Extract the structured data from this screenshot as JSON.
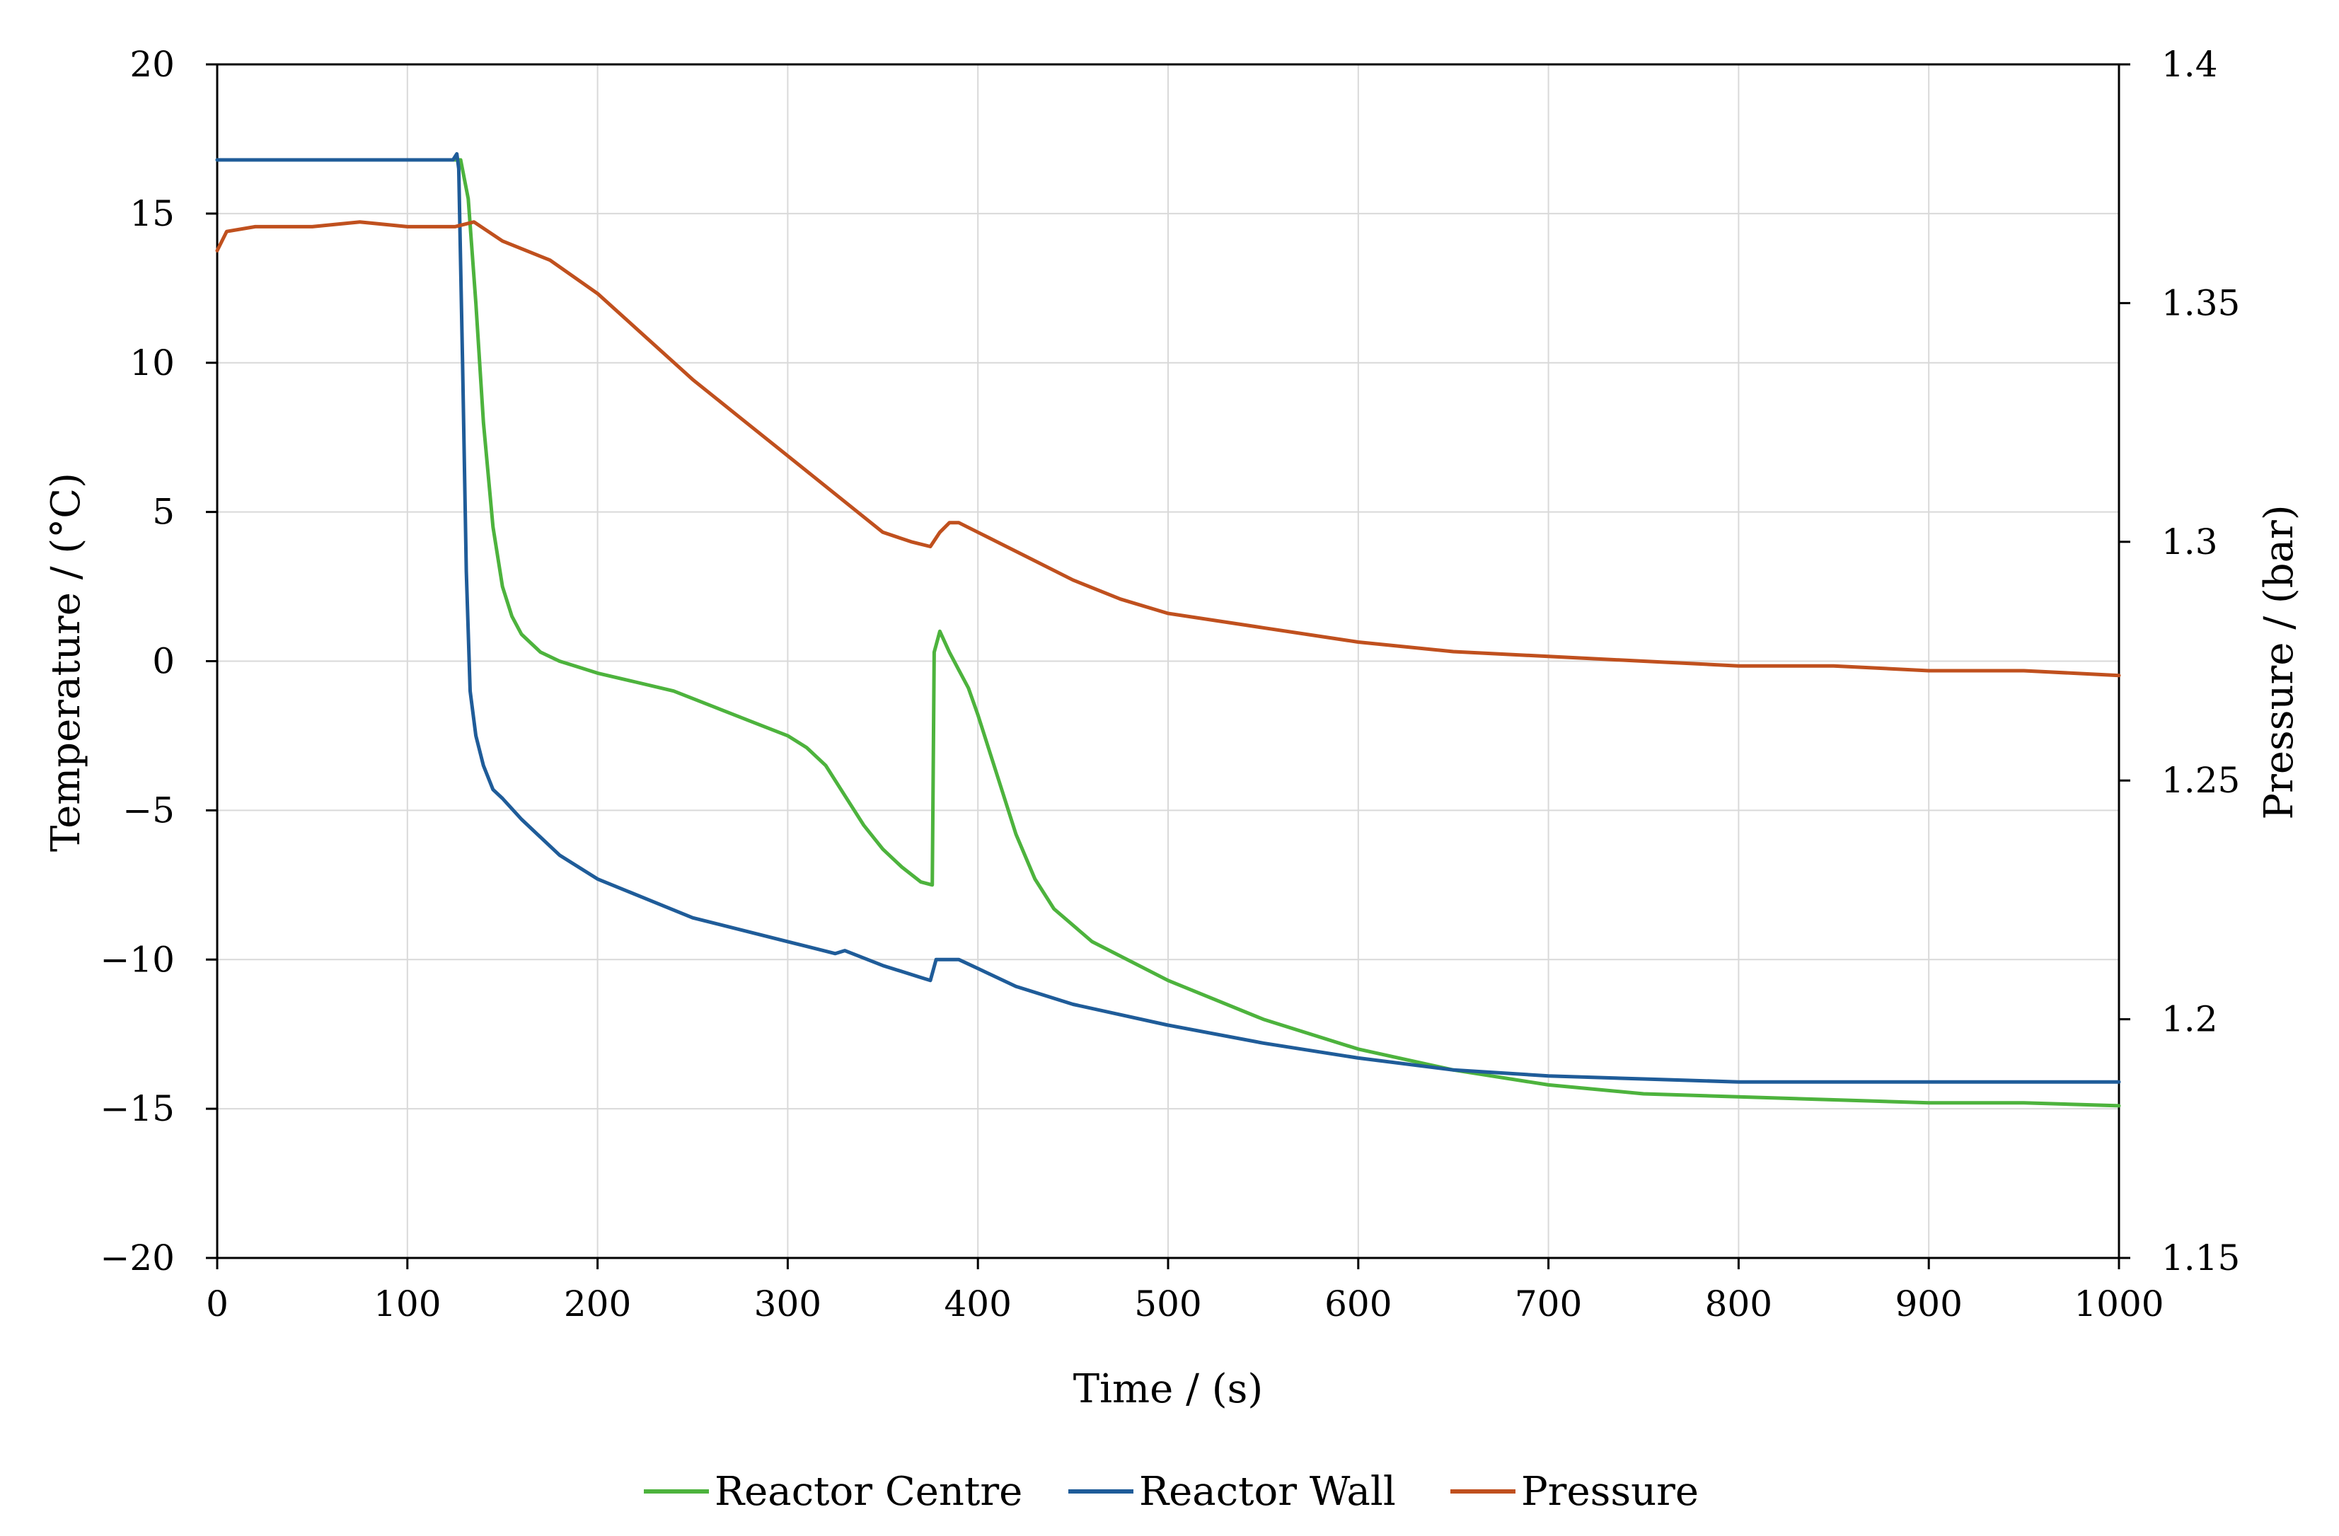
{
  "chart_data": {
    "type": "line",
    "title": "",
    "xlabel": "Time / (s)",
    "ylabel_left": "Temperature / (°C)",
    "ylabel_right": "Pressure / (bar)",
    "xlim": [
      0,
      1000
    ],
    "ylim_left": [
      -20,
      20
    ],
    "ylim_right": [
      1.15,
      1.4
    ],
    "x_ticks": [
      0,
      100,
      200,
      300,
      400,
      500,
      600,
      700,
      800,
      900,
      1000
    ],
    "y_left_ticks": [
      20,
      15,
      10,
      5,
      0,
      -5,
      -10,
      -15,
      -20
    ],
    "y_left_tick_labels": [
      "20",
      "15",
      "10",
      "5",
      "0",
      "−5",
      "−10",
      "−15",
      "−20"
    ],
    "y_right_ticks": [
      1.4,
      1.35,
      1.3,
      1.25,
      1.2,
      1.15
    ],
    "y_right_tick_labels": [
      "1.4",
      "1.35",
      "1.3",
      "1.25",
      "1.2",
      "1.15"
    ],
    "grid": true,
    "legend_position": "bottom",
    "series": [
      {
        "name": "Reactor Centre",
        "axis": "left",
        "color": "#4DB33D",
        "x": [
          0,
          100,
          125,
          128,
          132,
          136,
          140,
          145,
          150,
          155,
          160,
          170,
          180,
          190,
          200,
          220,
          240,
          260,
          280,
          300,
          310,
          320,
          330,
          340,
          350,
          360,
          370,
          376,
          377,
          380,
          385,
          390,
          395,
          400,
          410,
          420,
          430,
          440,
          460,
          500,
          550,
          600,
          650,
          700,
          750,
          800,
          850,
          900,
          950,
          1000
        ],
        "y": [
          16.8,
          16.8,
          16.8,
          16.8,
          15.5,
          12.0,
          8.0,
          4.5,
          2.5,
          1.5,
          0.9,
          0.3,
          0.0,
          -0.2,
          -0.4,
          -0.7,
          -1.0,
          -1.5,
          -2.0,
          -2.5,
          -2.9,
          -3.5,
          -4.5,
          -5.5,
          -6.3,
          -6.9,
          -7.4,
          -7.5,
          0.3,
          1.0,
          0.3,
          -0.3,
          -0.9,
          -1.8,
          -3.8,
          -5.8,
          -7.3,
          -8.3,
          -9.4,
          -10.7,
          -12.0,
          -13.0,
          -13.7,
          -14.2,
          -14.5,
          -14.6,
          -14.7,
          -14.8,
          -14.8,
          -14.9
        ]
      },
      {
        "name": "Reactor Wall",
        "axis": "left",
        "color": "#1F5C99",
        "x": [
          0,
          100,
          124,
          126,
          127,
          129,
          131,
          133,
          136,
          140,
          145,
          150,
          160,
          180,
          200,
          250,
          300,
          325,
          330,
          350,
          370,
          375,
          378,
          380,
          390,
          400,
          420,
          450,
          500,
          550,
          600,
          650,
          700,
          750,
          800,
          850,
          900,
          950,
          1000
        ],
        "y": [
          16.8,
          16.8,
          16.8,
          17.0,
          16.5,
          10.0,
          3.0,
          -1.0,
          -2.5,
          -3.5,
          -4.3,
          -4.6,
          -5.3,
          -6.5,
          -7.3,
          -8.6,
          -9.4,
          -9.8,
          -9.7,
          -10.2,
          -10.6,
          -10.7,
          -10.0,
          -10.0,
          -10.0,
          -10.3,
          -10.9,
          -11.5,
          -12.2,
          -12.8,
          -13.3,
          -13.7,
          -13.9,
          -14.0,
          -14.1,
          -14.1,
          -14.1,
          -14.1,
          -14.1
        ]
      },
      {
        "name": "Pressure",
        "axis": "right",
        "color": "#C0501E",
        "x": [
          0,
          5,
          20,
          50,
          75,
          100,
          125,
          135,
          150,
          175,
          200,
          225,
          250,
          275,
          300,
          325,
          350,
          365,
          375,
          380,
          385,
          390,
          400,
          425,
          450,
          475,
          500,
          550,
          600,
          650,
          700,
          750,
          800,
          850,
          900,
          950,
          1000
        ],
        "y": [
          1.361,
          1.365,
          1.366,
          1.366,
          1.367,
          1.366,
          1.366,
          1.367,
          1.363,
          1.359,
          1.352,
          1.343,
          1.334,
          1.326,
          1.318,
          1.31,
          1.302,
          1.3,
          1.299,
          1.302,
          1.304,
          1.304,
          1.302,
          1.297,
          1.292,
          1.288,
          1.285,
          1.282,
          1.279,
          1.277,
          1.276,
          1.275,
          1.274,
          1.274,
          1.273,
          1.273,
          1.272
        ]
      }
    ]
  }
}
